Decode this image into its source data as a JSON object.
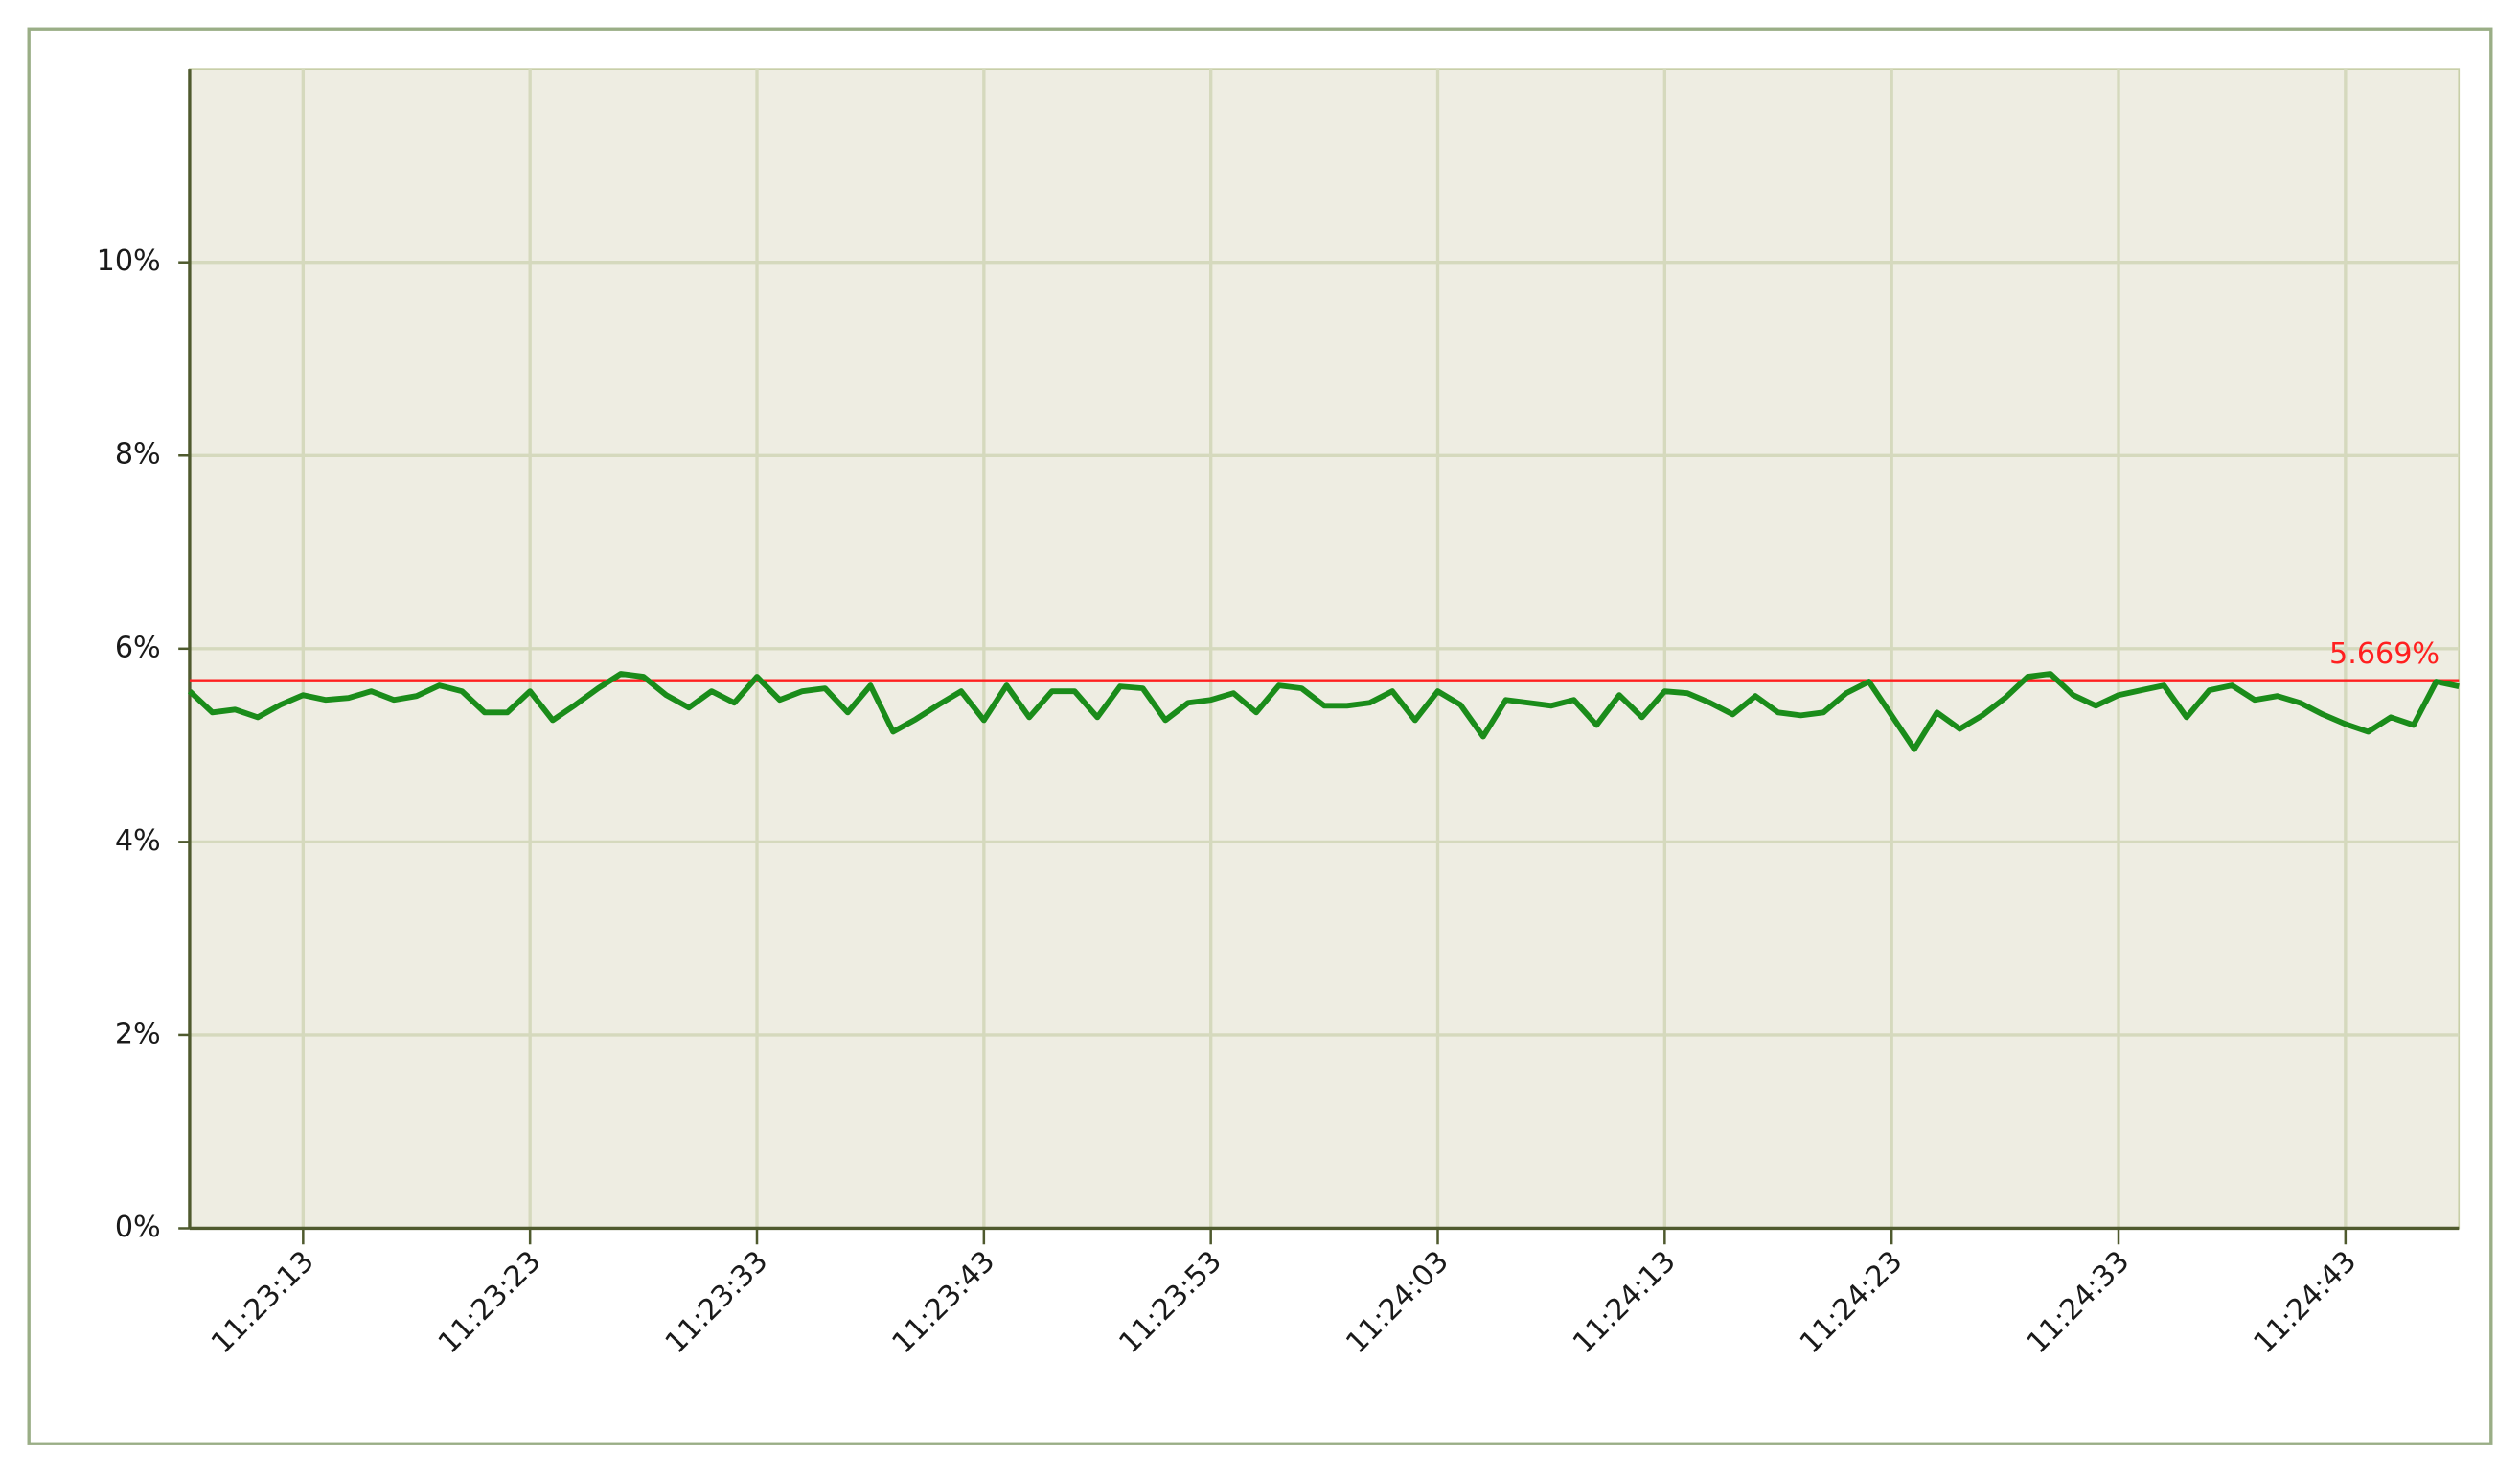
{
  "chart_data": {
    "type": "line",
    "x": [
      "11:23:08",
      "11:23:09",
      "11:23:10",
      "11:23:11",
      "11:23:12",
      "11:23:13",
      "11:23:14",
      "11:23:15",
      "11:23:16",
      "11:23:17",
      "11:23:18",
      "11:23:19",
      "11:23:20",
      "11:23:21",
      "11:23:22",
      "11:23:23",
      "11:23:24",
      "11:23:25",
      "11:23:26",
      "11:23:27",
      "11:23:28",
      "11:23:29",
      "11:23:30",
      "11:23:31",
      "11:23:32",
      "11:23:33",
      "11:23:34",
      "11:23:35",
      "11:23:36",
      "11:23:37",
      "11:23:38",
      "11:23:39",
      "11:23:40",
      "11:23:41",
      "11:23:42",
      "11:23:43",
      "11:23:44",
      "11:23:45",
      "11:23:46",
      "11:23:47",
      "11:23:48",
      "11:23:49",
      "11:23:50",
      "11:23:51",
      "11:23:52",
      "11:23:53",
      "11:23:54",
      "11:23:55",
      "11:23:56",
      "11:23:57",
      "11:23:58",
      "11:23:59",
      "11:24:00",
      "11:24:01",
      "11:24:02",
      "11:24:03",
      "11:24:04",
      "11:24:05",
      "11:24:06",
      "11:24:07",
      "11:24:08",
      "11:24:09",
      "11:24:10",
      "11:24:11",
      "11:24:12",
      "11:24:13",
      "11:24:14",
      "11:24:15",
      "11:24:16",
      "11:24:17",
      "11:24:18",
      "11:24:19",
      "11:24:20",
      "11:24:21",
      "11:24:22",
      "11:24:23",
      "11:24:24",
      "11:24:25",
      "11:24:26",
      "11:24:27",
      "11:24:28",
      "11:24:29",
      "11:24:30",
      "11:24:31",
      "11:24:32",
      "11:24:33",
      "11:24:34",
      "11:24:35",
      "11:24:36",
      "11:24:37",
      "11:24:38",
      "11:24:39",
      "11:24:40",
      "11:24:41",
      "11:24:42",
      "11:24:43",
      "11:24:44",
      "11:24:45",
      "11:24:46",
      "11:24:47",
      "11:24:48"
    ],
    "series": [
      {
        "color": "#1a8c1a",
        "values": [
          5.56,
          5.34,
          5.37,
          5.29,
          5.42,
          5.52,
          5.47,
          5.49,
          5.56,
          5.47,
          5.51,
          5.62,
          5.56,
          5.34,
          5.34,
          5.56,
          5.26,
          5.42,
          5.59,
          5.74,
          5.71,
          5.52,
          5.39,
          5.56,
          5.44,
          5.71,
          5.47,
          5.56,
          5.59,
          5.34,
          5.62,
          5.14,
          5.27,
          5.42,
          5.56,
          5.26,
          5.62,
          5.29,
          5.56,
          5.56,
          5.29,
          5.61,
          5.59,
          5.26,
          5.44,
          5.47,
          5.54,
          5.34,
          5.62,
          5.59,
          5.41,
          5.41,
          5.44,
          5.56,
          5.26,
          5.56,
          5.42,
          5.09,
          5.47,
          5.44,
          5.41,
          5.47,
          5.21,
          5.52,
          5.29,
          5.56,
          5.54,
          5.44,
          5.32,
          5.51,
          5.34,
          5.31,
          5.34,
          5.54,
          5.66,
          5.31,
          4.96,
          5.34,
          5.17,
          5.31,
          5.49,
          5.71,
          5.74,
          5.52,
          5.41,
          5.52,
          5.57,
          5.62,
          5.29,
          5.57,
          5.62,
          5.47,
          5.51,
          5.44,
          5.32,
          5.22,
          5.14,
          5.29,
          5.21,
          5.66,
          5.61
        ]
      }
    ],
    "reference_line": {
      "value": 5.669,
      "label": "5.669%",
      "color": "#ff2020"
    },
    "xlim": [
      "11:23:08",
      "11:24:48"
    ],
    "xticks": [
      "11:23:13",
      "11:23:23",
      "11:23:33",
      "11:23:43",
      "11:23:53",
      "11:24:03",
      "11:24:13",
      "11:24:23",
      "11:24:33",
      "11:24:43"
    ],
    "ylim": [
      0,
      12
    ],
    "yticks": [
      {
        "value": 0,
        "label": "0%"
      },
      {
        "value": 2,
        "label": "2%"
      },
      {
        "value": 4,
        "label": "4%"
      },
      {
        "value": 6,
        "label": "6%"
      },
      {
        "value": 8,
        "label": "8%"
      },
      {
        "value": 10,
        "label": "10%"
      }
    ],
    "grid": true
  }
}
